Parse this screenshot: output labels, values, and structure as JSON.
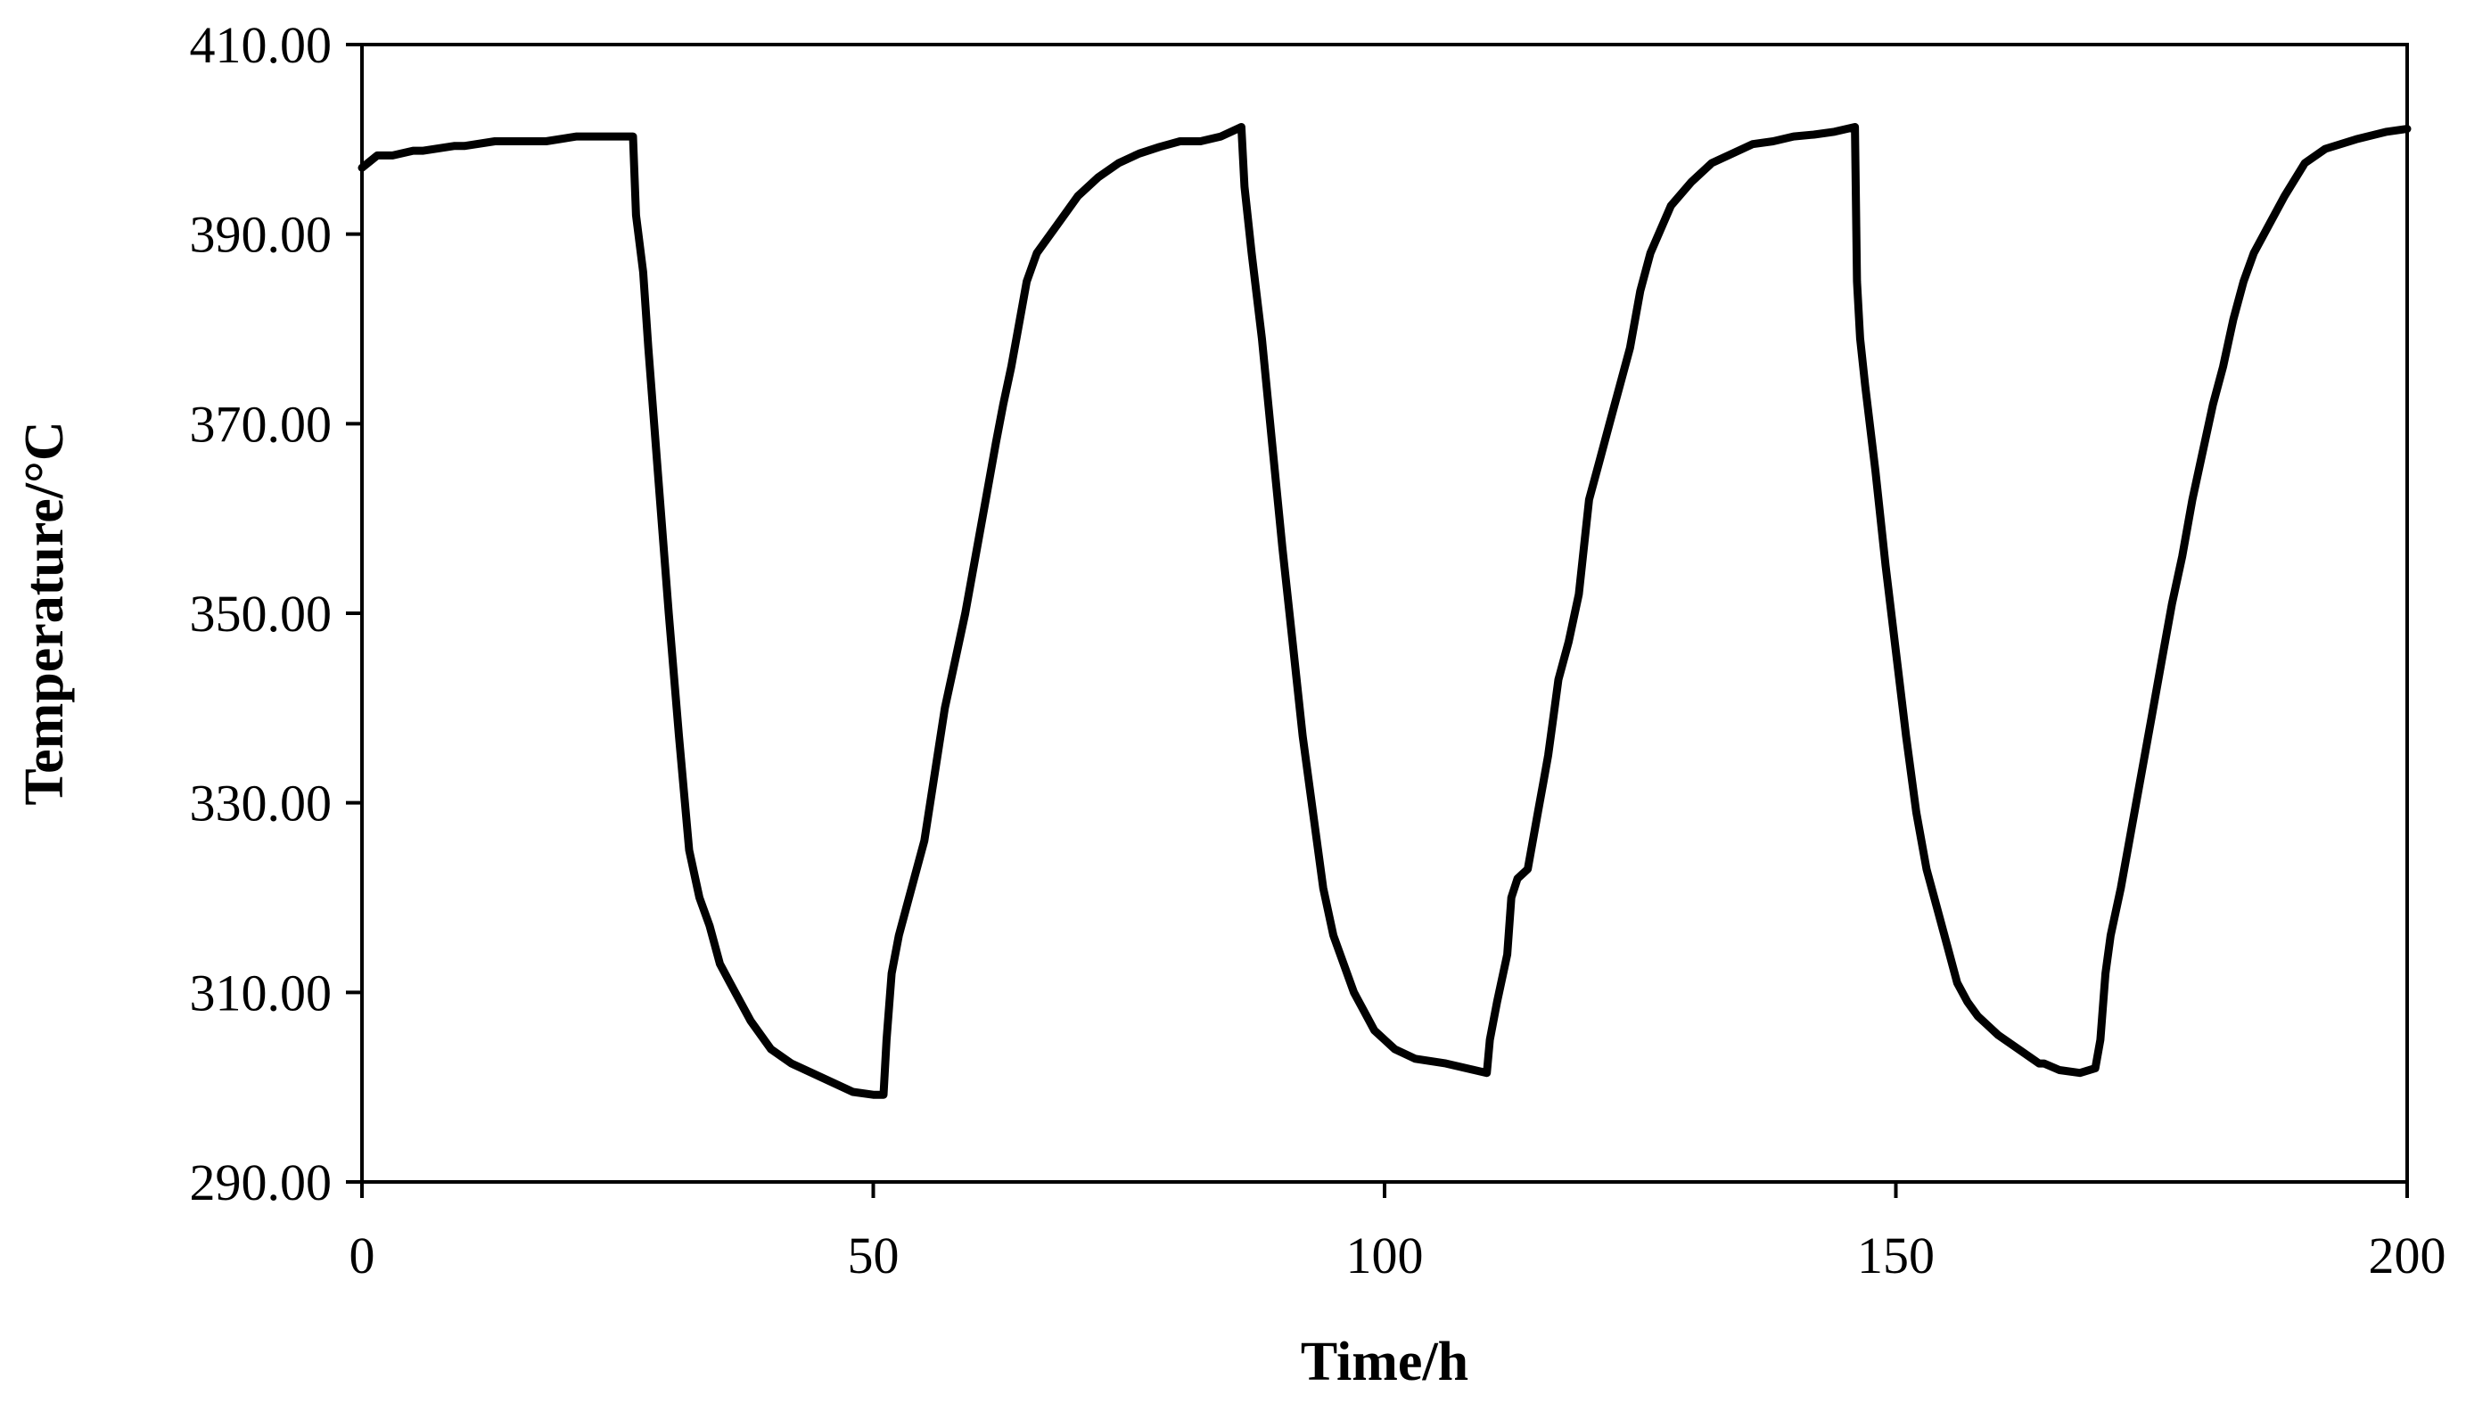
{
  "chart_data": {
    "type": "line",
    "title": "",
    "xlabel": "Time/h",
    "ylabel": "Temperature/°C",
    "xlim": [
      0,
      200
    ],
    "ylim": [
      290,
      410
    ],
    "xticks": [
      0,
      50,
      100,
      150,
      200
    ],
    "xtick_labels": [
      "0",
      "50",
      "100",
      "150",
      "200"
    ],
    "yticks": [
      290,
      310,
      330,
      350,
      370,
      390,
      410
    ],
    "ytick_labels": [
      "290.00",
      "310.00",
      "330.00",
      "350.00",
      "370.00",
      "390.00",
      "410.00"
    ],
    "grid": false,
    "legend": "none",
    "line_color": "#000000",
    "series": [
      {
        "x": [
          0,
          1.5,
          2.5,
          3,
          5,
          6,
          9,
          10,
          13,
          14,
          18,
          21,
          22,
          24,
          26.5,
          26.8,
          27.5,
          28,
          29,
          30,
          31,
          32,
          33,
          34,
          35,
          36,
          37,
          38,
          40,
          42,
          45,
          48,
          50,
          51,
          51.3,
          51.8,
          52.5,
          53.5,
          55,
          56,
          57,
          58,
          59,
          60,
          61,
          62,
          62.7,
          63.5,
          64,
          65,
          66,
          68,
          70,
          72,
          74,
          76,
          78,
          80,
          82,
          84,
          86,
          86.3,
          87,
          88,
          89,
          90,
          91,
          92,
          93,
          94,
          95,
          96,
          97,
          98,
          99,
          100,
          101,
          103,
          106,
          110,
          110.3,
          111,
          112,
          112.4,
          113,
          114,
          114.5,
          115,
          115.5,
          116,
          116.5,
          117,
          118,
          119,
          120,
          121,
          122,
          123,
          124,
          125,
          126,
          128,
          130,
          132,
          134,
          136,
          138,
          140,
          142,
          144,
          146,
          146.2,
          146.5,
          147,
          148,
          149,
          150,
          151,
          152,
          153,
          154,
          155,
          156,
          157,
          158,
          159,
          160,
          162,
          164,
          164.5,
          166,
          168,
          169.5,
          170,
          170.5,
          171,
          172,
          173,
          174,
          175,
          176,
          177,
          178,
          179,
          180,
          181,
          182,
          183,
          184,
          185,
          186,
          188,
          190,
          192,
          195,
          198,
          200
        ],
        "y": [
          397,
          398.3,
          398.3,
          398.3,
          398.8,
          398.8,
          399.3,
          399.3,
          399.8,
          399.8,
          399.8,
          400.3,
          400.3,
          400.3,
          400.3,
          392,
          386,
          378,
          364,
          350,
          337,
          325,
          320,
          317,
          313,
          311,
          309,
          307,
          304,
          302.5,
          301,
          299.5,
          299.2,
          299.2,
          305,
          312,
          316,
          320,
          326,
          333,
          340,
          345,
          350,
          356,
          362,
          368,
          372,
          376,
          379,
          385,
          388,
          391,
          394,
          396,
          397.5,
          398.5,
          399.2,
          399.8,
          399.8,
          400.3,
          401.3,
          395,
          388,
          379,
          368,
          357,
          347,
          337,
          329,
          321,
          316,
          313,
          310,
          308,
          306,
          305,
          304,
          303,
          302.5,
          301.5,
          305,
          309,
          314,
          320,
          322,
          323,
          326,
          329,
          332,
          335,
          339,
          343,
          347,
          352,
          362,
          366,
          370,
          374,
          378,
          384,
          388,
          393,
          395.5,
          397.5,
          398.5,
          399.5,
          399.8,
          400.3,
          400.5,
          400.8,
          401.3,
          385,
          379,
          374,
          365,
          355,
          346,
          337,
          329,
          323,
          319,
          315,
          311,
          309,
          307.5,
          306.5,
          305.5,
          304,
          302.5,
          302.5,
          301.8,
          301.5,
          302,
          305,
          312,
          316,
          321,
          327,
          333,
          339,
          345,
          351,
          356,
          362,
          367,
          372,
          376,
          381,
          385,
          388,
          390,
          394,
          397.5,
          399,
          400,
          400.8,
          401.1
        ]
      }
    ]
  }
}
